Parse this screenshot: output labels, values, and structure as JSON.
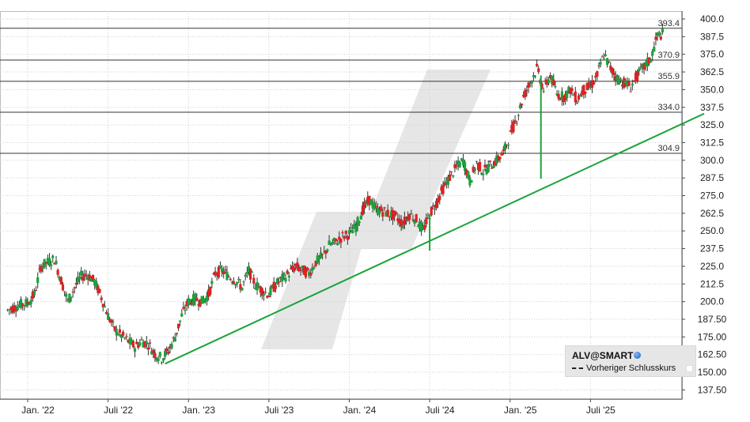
{
  "chart_data": {
    "type": "candlestick",
    "title": "",
    "xlabel": "",
    "ylabel": "",
    "ylim": [
      131.25,
      400.0
    ],
    "y_ticks": [
      "400.0",
      "387.5",
      "375.0",
      "362.5",
      "350.0",
      "337.5",
      "325.0",
      "312.5",
      "300.0",
      "287.5",
      "275.0",
      "262.5",
      "250.0",
      "237.5",
      "225.0",
      "212.5",
      "200.0",
      "187.50",
      "175.00",
      "162.50",
      "150.00",
      "137.50"
    ],
    "x_ticks": [
      {
        "label": "Jan. '22",
        "month": 0
      },
      {
        "label": "Juli '22",
        "month": 6
      },
      {
        "label": "Jan. '23",
        "month": 12
      },
      {
        "label": "Juli '23",
        "month": 18
      },
      {
        "label": "Jan. '24",
        "month": 24
      },
      {
        "label": "Juli '24",
        "month": 30
      },
      {
        "label": "Jan. '25",
        "month": 36
      },
      {
        "label": "Juli '25",
        "month": 42
      }
    ],
    "x_range_months": [
      -1.5,
      48.0
    ],
    "horizontal_levels": [
      {
        "value": 393.4,
        "label": "393.4"
      },
      {
        "value": 370.9,
        "label": "370.9"
      },
      {
        "value": 355.9,
        "label": "355.9"
      },
      {
        "value": 334.0,
        "label": "334.0"
      },
      {
        "value": 304.9,
        "label": "304.9"
      }
    ],
    "trendline": {
      "start": {
        "month": 10.25,
        "value": 156
      },
      "end": {
        "month": 48.0,
        "value": 333
      },
      "color": "#1aa33a"
    },
    "series_close": [
      [
        -1.5,
        194
      ],
      [
        -1.0,
        196
      ],
      [
        -0.5,
        198
      ],
      [
        0,
        199
      ],
      [
        0.5,
        205
      ],
      [
        1.0,
        225
      ],
      [
        1.5,
        228
      ],
      [
        2.0,
        230
      ],
      [
        2.5,
        215
      ],
      [
        3.0,
        200
      ],
      [
        3.5,
        210
      ],
      [
        4.0,
        218
      ],
      [
        4.5,
        219
      ],
      [
        5.0,
        214
      ],
      [
        5.5,
        203
      ],
      [
        6.0,
        190
      ],
      [
        6.5,
        180
      ],
      [
        7.0,
        176
      ],
      [
        7.5,
        172
      ],
      [
        8.0,
        168
      ],
      [
        8.5,
        172
      ],
      [
        9.0,
        170
      ],
      [
        9.5,
        163
      ],
      [
        10.0,
        160
      ],
      [
        10.5,
        165
      ],
      [
        11.0,
        175
      ],
      [
        11.5,
        190
      ],
      [
        12.0,
        200
      ],
      [
        12.5,
        202
      ],
      [
        13.0,
        200
      ],
      [
        13.5,
        205
      ],
      [
        14.0,
        220
      ],
      [
        14.5,
        222
      ],
      [
        15.0,
        218
      ],
      [
        15.5,
        215
      ],
      [
        16.0,
        210
      ],
      [
        16.5,
        222
      ],
      [
        17.0,
        212
      ],
      [
        17.5,
        208
      ],
      [
        18.0,
        205
      ],
      [
        18.5,
        212
      ],
      [
        19.0,
        216
      ],
      [
        19.5,
        220
      ],
      [
        20.0,
        225
      ],
      [
        20.5,
        222
      ],
      [
        21.0,
        220
      ],
      [
        21.5,
        228
      ],
      [
        22.0,
        232
      ],
      [
        22.5,
        240
      ],
      [
        23.0,
        242
      ],
      [
        23.5,
        246
      ],
      [
        24.0,
        248
      ],
      [
        24.5,
        253
      ],
      [
        25.0,
        265
      ],
      [
        25.5,
        272
      ],
      [
        26.0,
        265
      ],
      [
        26.5,
        264
      ],
      [
        27.0,
        262
      ],
      [
        27.5,
        260
      ],
      [
        28.0,
        255
      ],
      [
        28.5,
        262
      ],
      [
        29.0,
        258
      ],
      [
        29.5,
        250
      ],
      [
        30.0,
        262
      ],
      [
        30.5,
        270
      ],
      [
        31.0,
        280
      ],
      [
        31.5,
        288
      ],
      [
        32.0,
        295
      ],
      [
        32.5,
        300
      ],
      [
        33.0,
        285
      ],
      [
        33.5,
        298
      ],
      [
        34.0,
        292
      ],
      [
        34.5,
        296
      ],
      [
        35.0,
        300
      ],
      [
        35.5,
        305
      ],
      [
        36.0,
        318
      ],
      [
        36.5,
        330
      ],
      [
        37.0,
        345
      ],
      [
        37.5,
        355
      ],
      [
        38.0,
        365
      ],
      [
        38.5,
        350
      ],
      [
        39.0,
        360
      ],
      [
        39.5,
        347
      ],
      [
        40.0,
        345
      ],
      [
        40.5,
        350
      ],
      [
        41.0,
        343
      ],
      [
        41.5,
        350
      ],
      [
        42.0,
        352
      ],
      [
        42.5,
        360
      ],
      [
        43.0,
        375
      ],
      [
        43.5,
        365
      ],
      [
        44.0,
        358
      ],
      [
        44.5,
        355
      ],
      [
        45.0,
        352
      ],
      [
        45.5,
        360
      ],
      [
        46.0,
        366
      ],
      [
        46.5,
        372
      ],
      [
        47.0,
        388
      ],
      [
        47.5,
        390
      ]
    ]
  },
  "legend": {
    "title": "ALV@SMART",
    "item": "Vorheriger Schlusskurs"
  },
  "colors": {
    "up": "#1aa33a",
    "down": "#e02020",
    "grid": "#cfcfcf",
    "watermark": "#e2e2e2"
  }
}
